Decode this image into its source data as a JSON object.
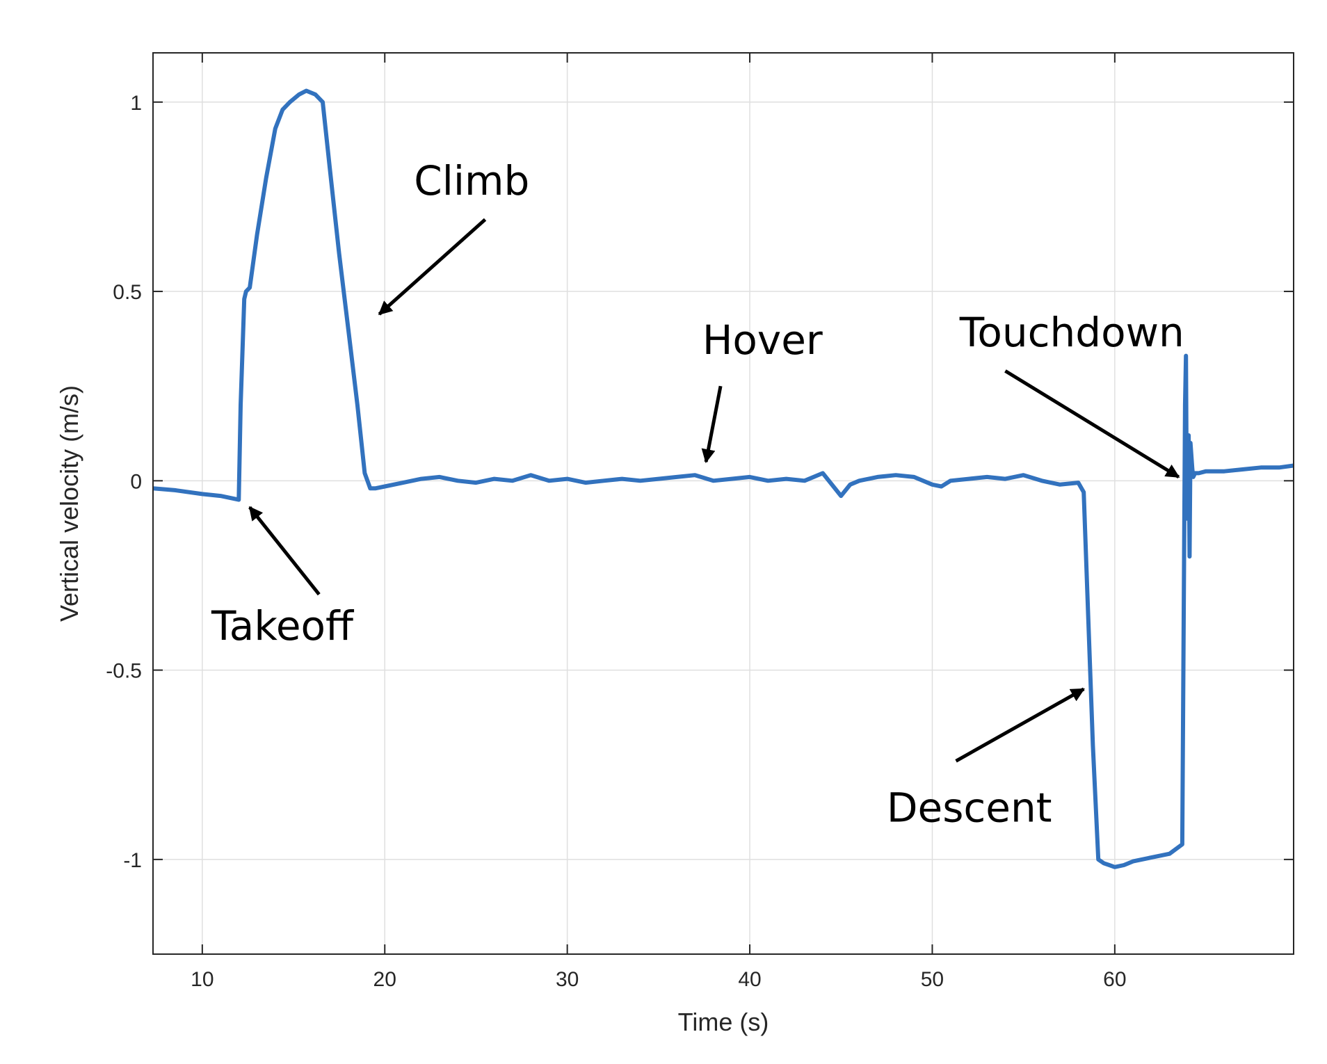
{
  "chart_data": {
    "type": "line",
    "xlabel": "Time (s)",
    "ylabel": "Vertical velocity (m/s)",
    "xlim": [
      7.3,
      69.8
    ],
    "ylim": [
      -1.25,
      1.13
    ],
    "xticks": [
      10,
      20,
      30,
      40,
      50,
      60
    ],
    "xtick_labels": [
      "10",
      "20",
      "30",
      "40",
      "50",
      "60"
    ],
    "yticks": [
      1,
      0.5,
      0,
      -0.5,
      -1
    ],
    "ytick_labels": [
      "1",
      "0.5",
      "0",
      "-0.5",
      "-1"
    ],
    "grid": true,
    "colors": {
      "series": "#3272be",
      "grid": "#dfdfdf",
      "axis": "#262626",
      "annotation": "#000000"
    },
    "series": [
      {
        "color": "#3272be",
        "x": [
          7.3,
          8.5,
          10,
          11,
          12,
          12.1,
          12.3,
          12.4,
          12.6,
          13,
          13.5,
          14,
          14.4,
          14.8,
          15.3,
          15.7,
          16.2,
          16.6,
          17,
          17.5,
          18,
          18.5,
          18.9,
          19.2,
          19.5,
          20,
          21,
          22,
          23,
          24,
          25,
          26,
          27,
          28,
          29,
          30,
          31,
          32,
          33,
          34,
          35,
          36,
          37,
          38,
          39,
          40,
          41,
          42,
          43,
          44,
          45,
          45.5,
          46,
          47,
          48,
          49,
          50,
          50.5,
          51,
          52,
          53,
          54,
          55,
          56,
          57,
          58,
          58.3,
          58.5,
          58.8,
          59.1,
          59.4,
          59.7,
          60,
          60.5,
          61,
          62,
          63,
          63.7,
          63.85,
          63.9,
          63.95,
          64.05,
          64.1,
          64.15,
          64.25,
          64.3,
          64.4,
          64.6,
          65,
          66,
          67,
          68,
          69,
          69.8
        ],
        "y": [
          -0.02,
          -0.025,
          -0.035,
          -0.04,
          -0.05,
          0.2,
          0.48,
          0.5,
          0.51,
          0.65,
          0.8,
          0.93,
          0.98,
          1.0,
          1.02,
          1.03,
          1.02,
          1.0,
          0.82,
          0.6,
          0.4,
          0.2,
          0.02,
          -0.02,
          -0.02,
          -0.015,
          -0.005,
          0.005,
          0.01,
          0.0,
          -0.005,
          0.005,
          0.0,
          0.015,
          0.0,
          0.005,
          -0.005,
          0.0,
          0.005,
          0.0,
          0.005,
          0.01,
          0.015,
          0.0,
          0.005,
          0.01,
          0.0,
          0.005,
          0.0,
          0.02,
          -0.04,
          -0.01,
          0.0,
          0.01,
          0.015,
          0.01,
          -0.01,
          -0.015,
          0.0,
          0.005,
          0.01,
          0.005,
          0.015,
          0.0,
          -0.01,
          -0.005,
          -0.03,
          -0.3,
          -0.7,
          -1.0,
          -1.01,
          -1.015,
          -1.02,
          -1.015,
          -1.005,
          -0.995,
          -0.985,
          -0.96,
          0.2,
          0.33,
          -0.1,
          0.12,
          -0.2,
          0.1,
          0.03,
          0.01,
          0.02,
          0.02,
          0.025,
          0.025,
          0.03,
          0.035,
          0.035,
          0.04
        ]
      }
    ],
    "annotations": [
      {
        "text": "Climb",
        "x": 21.6,
        "y": 0.755,
        "arrow_from": [
          25.5,
          0.69
        ],
        "arrow_to": [
          19.7,
          0.44
        ]
      },
      {
        "text": "Hover",
        "x": 37.4,
        "y": 0.335,
        "arrow_from": [
          38.4,
          0.25
        ],
        "arrow_to": [
          37.6,
          0.05
        ]
      },
      {
        "text": "Touchdown",
        "x": 51.5,
        "y": 0.355,
        "arrow_from": [
          54.0,
          0.29
        ],
        "arrow_to": [
          63.5,
          0.01
        ]
      },
      {
        "text": "Takeoff",
        "x": 10.5,
        "y": -0.42,
        "arrow_from": [
          16.4,
          -0.3
        ],
        "arrow_to": [
          12.6,
          -0.07
        ]
      },
      {
        "text": "Descent",
        "x": 47.5,
        "y": -0.9,
        "arrow_from": [
          51.3,
          -0.74
        ],
        "arrow_to": [
          58.3,
          -0.55
        ]
      }
    ]
  }
}
